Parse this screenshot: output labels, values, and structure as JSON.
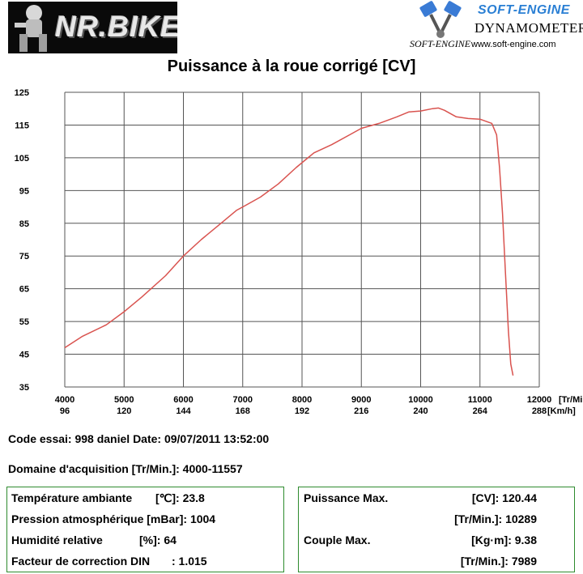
{
  "header": {
    "left_logo_text": "NR.BIKE",
    "right_logo_brand": "SOFT-ENGINE",
    "right_logo_sub": "DYNAMOMETERS",
    "right_logo_small": "SOFT-ENGINE",
    "right_logo_url": "www.soft-engine.com"
  },
  "colors": {
    "curve": "#d9534f",
    "grid": "#555555",
    "box_border": "#2e8b2e",
    "brand_blue": "#2a7fd4"
  },
  "chart_data": {
    "type": "line",
    "title": "Puissance à la roue corrigé [CV]",
    "xlabel": "[Tr/Min]",
    "x2label": "[Km/h]",
    "xlim": [
      4000,
      12000
    ],
    "ylim": [
      35,
      125
    ],
    "grid": true,
    "x_ticks": [
      4000,
      5000,
      6000,
      7000,
      8000,
      9000,
      10000,
      11000,
      12000
    ],
    "x2_ticks": [
      "96",
      "120",
      "144",
      "168",
      "192",
      "216",
      "240",
      "264",
      "288"
    ],
    "y_ticks": [
      35,
      45,
      55,
      65,
      75,
      85,
      95,
      105,
      115,
      125
    ],
    "series": [
      {
        "x": [
          4000,
          4300,
          4700,
          5000,
          5300,
          5700,
          6000,
          6300,
          6600,
          6900,
          7000,
          7300,
          7600,
          7900,
          8200,
          8500,
          8800,
          9000,
          9300,
          9600,
          9800,
          10000,
          10200,
          10300,
          10400,
          10600,
          10800,
          11000,
          11200,
          11280,
          11330,
          11380,
          11430,
          11480,
          11520,
          11557
        ],
        "y": [
          47,
          50.5,
          54,
          58,
          62.5,
          69,
          75,
          80,
          84.5,
          89,
          90,
          93,
          97,
          102,
          106.5,
          109,
          112,
          114,
          115.5,
          117.5,
          119,
          119.3,
          120,
          120.2,
          119.5,
          117.5,
          117,
          116.8,
          115.5,
          112,
          102,
          88,
          70,
          52,
          42,
          38.5
        ]
      }
    ]
  },
  "info": {
    "code_line": "Code essai: 998 daniel  Date: 09/07/2011 13:52:00",
    "domain_line": "Domaine d'acquisition [Tr/Min.]: 4000-11557"
  },
  "left_box": {
    "temp_label": "Température ambiante",
    "temp_unit": "[℃]: 23.8",
    "press_label": "Pression atmosphérique [mBar]: 1004",
    "hum_label": "Humidité relative",
    "hum_unit": "[%]: 64",
    "din_label": "Facteur de correction DIN",
    "din_value": ": 1.015"
  },
  "right_box": {
    "power_label": "Puissance Max.",
    "power_value": "[CV]: 120.44",
    "power_rpm": "[Tr/Min.]: 10289",
    "torque_label": "Couple Max.",
    "torque_value": "[Kg·m]: 9.38",
    "torque_rpm": "[Tr/Min.]: 7989"
  }
}
